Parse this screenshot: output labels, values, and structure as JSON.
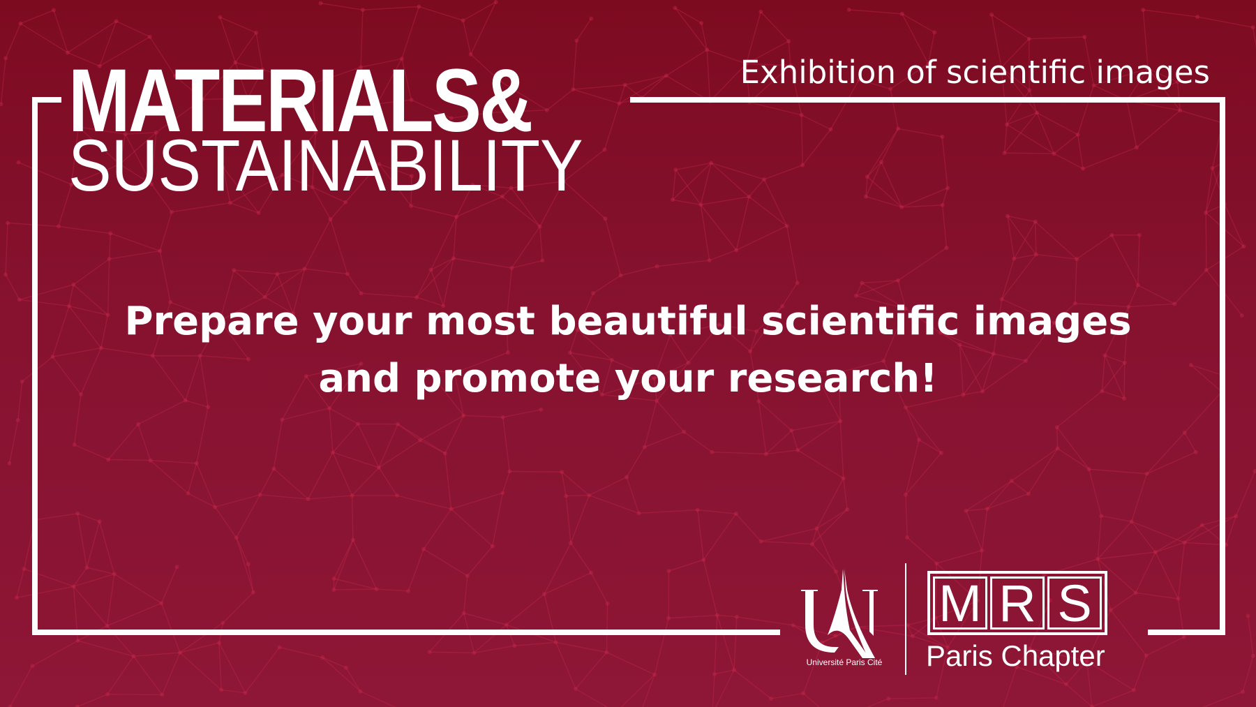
{
  "colors": {
    "background_top": "#7d0b20",
    "background_bottom": "#8e1636",
    "network": "#c8284c",
    "foreground": "#ffffff"
  },
  "header": {
    "title_line1": "MATERIALS&",
    "title_line2": "SUSTAINABILITY",
    "subtitle": "Exhibition of scientific images"
  },
  "main": {
    "line1": "Prepare your most beautiful scientific images",
    "line2": "and promote your research!"
  },
  "logos": {
    "upc_name": "Université Paris Cité",
    "mrs_letters": [
      "M",
      "R",
      "S"
    ],
    "mrs_chapter": "Paris Chapter"
  }
}
